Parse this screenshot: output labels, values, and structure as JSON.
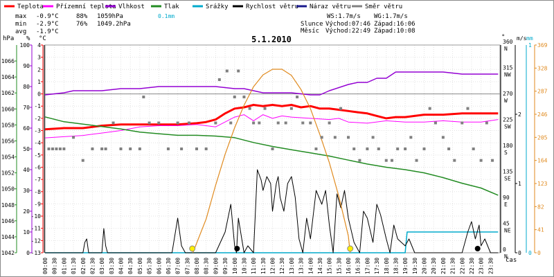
{
  "legend": [
    {
      "label": "Teplota",
      "color": "#ff0000"
    },
    {
      "label": "Přízemní teplota",
      "color": "#ff00ff"
    },
    {
      "label": "Vlhkost",
      "color": "#9400d3"
    },
    {
      "label": "Tlak",
      "color": "#228b22"
    },
    {
      "label": "Srážky",
      "color": "#00aacc"
    },
    {
      "label": "Rychlost větru",
      "color": "#000000"
    },
    {
      "label": "Náraz větru",
      "color": "#1a1a8c"
    },
    {
      "label": "Směr větru",
      "color": "#808080"
    }
  ],
  "stats": {
    "max": {
      "label": "max",
      "temp": "-0.9°C",
      "hum": "88%",
      "press": "1059hPa",
      "rain": "0.1mm"
    },
    "min": {
      "label": "min",
      "temp": "-2.9°C",
      "hum": "76%",
      "press": "1049.2hPa"
    },
    "avg": {
      "label": "avg",
      "temp": "-1.9°C"
    }
  },
  "info": {
    "ws": "WS:1.7m/s",
    "wg": "WG:1.7m/s",
    "sun_label": "Slunce",
    "sunrise": "Východ:07:46",
    "sunset": "Západ:16:06",
    "moon_label": "Měsíc",
    "moonrise": "Východ:22:49",
    "moonset": "Západ:10:08"
  },
  "axis_units": {
    "hpa": "hPa",
    "pct": "%",
    "degc": "°C",
    "deg": "°",
    "ms": "m/s",
    "mm": "mm",
    "time": "čas"
  },
  "chart_data": {
    "type": "line",
    "title": "5.1.2010",
    "x_hours": [
      0,
      0.5,
      1,
      1.5,
      2,
      2.5,
      3,
      3.5,
      4,
      4.5,
      5,
      5.5,
      6,
      6.5,
      7,
      7.5,
      8,
      8.5,
      9,
      9.5,
      10,
      10.5,
      11,
      11.5,
      12,
      12.5,
      13,
      13.5,
      14,
      14.5,
      15,
      15.5,
      16,
      16.5,
      17,
      17.5,
      18,
      18.5,
      19,
      19.5,
      20,
      20.5,
      21,
      21.5,
      22,
      22.5,
      23,
      23.5
    ],
    "x_tick_labels": [
      "00:00",
      "00:30",
      "01:00",
      "01:30",
      "02:00",
      "02:30",
      "03:00",
      "03:30",
      "04:00",
      "04:30",
      "05:00",
      "05:30",
      "06:00",
      "06:30",
      "07:00",
      "07:30",
      "08:00",
      "08:30",
      "09:00",
      "09:30",
      "10:00",
      "10:30",
      "11:00",
      "11:30",
      "12:00",
      "12:30",
      "13:00",
      "13:30",
      "14:00",
      "14:30",
      "15:00",
      "15:30",
      "16:00",
      "16:30",
      "17:00",
      "17:30",
      "18:00",
      "18:30",
      "19:00",
      "19:30",
      "20:00",
      "20:30",
      "21:00",
      "21:30",
      "22:00",
      "22:30",
      "23:00",
      "23:30"
    ],
    "axes": {
      "hpa": {
        "ticks": [
          1042,
          1044,
          1046,
          1048,
          1050,
          1052,
          1054,
          1056,
          1058,
          1060,
          1062,
          1064,
          1066
        ],
        "range": [
          1042,
          1068
        ]
      },
      "pct": {
        "ticks": [
          0,
          10,
          20,
          30,
          40,
          50,
          60,
          70,
          80,
          90,
          100
        ],
        "range": [
          0,
          100
        ]
      },
      "degc": {
        "ticks": [
          -13,
          -12,
          -11,
          -10,
          -9,
          -8,
          -7,
          -6,
          -5,
          -4,
          -3,
          -2,
          -1,
          0,
          1,
          2,
          3,
          4
        ],
        "range": [
          -13,
          4
        ]
      },
      "deg": {
        "ticks": [
          0,
          45,
          90,
          135,
          180,
          225,
          270,
          315,
          360
        ],
        "compass": [
          "N",
          "NE",
          "E",
          "SE",
          "S",
          "SW",
          "W",
          "NW",
          "N"
        ],
        "range": [
          0,
          360
        ]
      },
      "ms": {
        "ticks": [
          0,
          1,
          2
        ],
        "range": [
          0,
          3
        ]
      },
      "mm": {
        "ticks": [
          0,
          1
        ],
        "range": [
          0,
          1
        ]
      },
      "solar": {
        "ticks": [
          0,
          41,
          82,
          123,
          164,
          205,
          246,
          287,
          328,
          369
        ],
        "range": [
          0,
          369
        ]
      }
    },
    "series": [
      {
        "name": "Teplota",
        "unit": "degc",
        "color": "#ff0000",
        "x": [
          0,
          1,
          2,
          3,
          4,
          5,
          6,
          7,
          8,
          8.5,
          9,
          9.5,
          10,
          10.5,
          11,
          11.5,
          12,
          12.5,
          13,
          13.5,
          14,
          14.5,
          15,
          15.5,
          16,
          16.5,
          17,
          17.5,
          18,
          18.5,
          19,
          19.5,
          20,
          21,
          22,
          23,
          23.9
        ],
        "y": [
          -2.9,
          -2.8,
          -2.8,
          -2.6,
          -2.5,
          -2.5,
          -2.5,
          -2.5,
          -2.4,
          -2.3,
          -2.1,
          -1.6,
          -1.2,
          -1.1,
          -0.9,
          -1.0,
          -0.9,
          -1.0,
          -0.9,
          -1.1,
          -1.0,
          -1.2,
          -1.2,
          -1.3,
          -1.4,
          -1.5,
          -1.6,
          -1.8,
          -2.0,
          -1.9,
          -1.9,
          -1.8,
          -1.7,
          -1.7,
          -1.6,
          -1.6,
          -1.6
        ]
      },
      {
        "name": "Přízemní teplota",
        "unit": "degc",
        "color": "#ff00ff",
        "x": [
          0,
          1,
          2,
          3,
          4,
          5,
          6,
          7,
          8,
          9,
          10,
          10.5,
          11,
          11.5,
          12,
          12.5,
          13,
          14,
          15,
          15.5,
          16,
          17,
          18,
          19,
          20,
          21,
          22,
          23,
          23.9
        ],
        "y": [
          -3.6,
          -3.5,
          -3.4,
          -3.2,
          -3.0,
          -2.7,
          -2.6,
          -2.6,
          -2.5,
          -2.7,
          -1.9,
          -1.7,
          -2.2,
          -1.7,
          -2.0,
          -1.8,
          -1.9,
          -2.0,
          -2.1,
          -2.0,
          -2.3,
          -2.4,
          -2.2,
          -2.3,
          -2.3,
          -2.2,
          -2.3,
          -2.3,
          -2.1
        ]
      },
      {
        "name": "Vlhkost",
        "unit": "pct",
        "color": "#9400d3",
        "x": [
          0,
          1,
          1.5,
          2,
          3,
          4,
          5,
          6,
          6.5,
          7,
          8,
          9,
          10,
          10.5,
          11,
          11.5,
          12,
          13,
          14,
          14.5,
          15,
          16,
          16.5,
          17,
          17.5,
          18,
          18.5,
          19,
          19.5,
          20,
          21,
          22,
          23,
          23.9
        ],
        "y": [
          76,
          77,
          78,
          78,
          78,
          79,
          79,
          80,
          80,
          80,
          80,
          80,
          79,
          79,
          78,
          77,
          77,
          77,
          76,
          76,
          78,
          81,
          82,
          82,
          84,
          84,
          87,
          87,
          87,
          87,
          87,
          86,
          86,
          86
        ]
      },
      {
        "name": "Tlak",
        "unit": "hpa",
        "color": "#228b22",
        "x": [
          0,
          1,
          2,
          3,
          4,
          5,
          6,
          7,
          8,
          9,
          10,
          11,
          12,
          13,
          14,
          15,
          16,
          17,
          18,
          19,
          20,
          21,
          22,
          23,
          23.9
        ],
        "y": [
          1059.0,
          1058.4,
          1058.1,
          1057.8,
          1057.5,
          1057.1,
          1056.9,
          1056.7,
          1056.7,
          1056.6,
          1056.4,
          1055.8,
          1055.3,
          1054.9,
          1054.5,
          1054.1,
          1053.6,
          1053.1,
          1052.7,
          1052.4,
          1052.0,
          1051.4,
          1050.7,
          1050.1,
          1049.2
        ]
      },
      {
        "name": "Srážky",
        "unit": "mm",
        "color": "#00aacc",
        "x": [
          0,
          19.0,
          19.1,
          23.9
        ],
        "y": [
          0,
          0,
          0.1,
          0.1
        ]
      },
      {
        "name": "Rychlost větru",
        "unit": "ms",
        "color": "#000000",
        "x": [
          0,
          1,
          2,
          2.1,
          2.2,
          2.3,
          2.5,
          3,
          3.1,
          3.2,
          3.3,
          3.5,
          4,
          5,
          6,
          6.7,
          7.0,
          7.2,
          7.4,
          8,
          9,
          9.5,
          9.8,
          10,
          10.1,
          10.2,
          10.5,
          10.7,
          11,
          11.2,
          11.4,
          11.5,
          11.7,
          11.9,
          12,
          12.2,
          12.3,
          12.4,
          12.6,
          12.8,
          13,
          13.2,
          13.4,
          13.6,
          13.8,
          14,
          14.3,
          14.6,
          14.8,
          15,
          15.2,
          15.4,
          15.6,
          15.8,
          16,
          16.3,
          16.6,
          16.8,
          17,
          17.3,
          17.5,
          17.7,
          18,
          18.2,
          18.4,
          18.6,
          18.8,
          19,
          19.2,
          19.5,
          20,
          21,
          22,
          22.3,
          22.5,
          22.7,
          22.9,
          23,
          23.2,
          23.5,
          23.9
        ],
        "y": [
          0,
          0,
          0,
          0.15,
          0.2,
          0,
          0,
          0,
          0.35,
          0.1,
          0,
          0,
          0,
          0,
          0,
          0,
          0.5,
          0.1,
          0,
          0,
          0,
          0.3,
          0.7,
          0.1,
          0,
          0.5,
          0,
          0.1,
          0,
          1.2,
          1.05,
          0.9,
          1.1,
          1.0,
          0.6,
          1.0,
          1.1,
          0.8,
          0.6,
          1.0,
          1.1,
          0.8,
          0.2,
          0,
          0.5,
          0.2,
          0.9,
          0.7,
          0.9,
          0.4,
          0,
          0.85,
          0.65,
          0.9,
          0.5,
          0.15,
          0,
          0.6,
          0.5,
          0.15,
          0.7,
          0.55,
          0.2,
          0,
          0.4,
          0.2,
          0.15,
          0.1,
          0.2,
          0,
          0,
          0,
          0,
          0.3,
          0.45,
          0.2,
          0.4,
          0.1,
          0.2,
          0,
          0
        ]
      },
      {
        "name": "Solar",
        "unit": "solar",
        "color": "#e08a1e",
        "x": [
          7.8,
          8.5,
          9,
          9.5,
          10,
          10.5,
          11,
          11.5,
          12,
          12.5,
          13,
          13.5,
          14,
          14.5,
          15,
          15.5,
          16,
          16.1
        ],
        "y": [
          0,
          60,
          120,
          175,
          222,
          262,
          295,
          316,
          326,
          326,
          315,
          290,
          256,
          210,
          160,
          100,
          30,
          0
        ]
      },
      {
        "name": "Směr větru",
        "unit": "deg",
        "color": "#808080",
        "points": [
          [
            0.2,
            180
          ],
          [
            0.4,
            180
          ],
          [
            0.6,
            180
          ],
          [
            0.8,
            180
          ],
          [
            1.0,
            180
          ],
          [
            1.5,
            200
          ],
          [
            2.0,
            160
          ],
          [
            2.5,
            180
          ],
          [
            3,
            180
          ],
          [
            3.2,
            180
          ],
          [
            3.6,
            225
          ],
          [
            4,
            180
          ],
          [
            4.5,
            180
          ],
          [
            5,
            180
          ],
          [
            5.2,
            270
          ],
          [
            5.5,
            225
          ],
          [
            6,
            225
          ],
          [
            6.5,
            180
          ],
          [
            7,
            225
          ],
          [
            7.2,
            180
          ],
          [
            7.6,
            225
          ],
          [
            8.0,
            180
          ],
          [
            8.5,
            180
          ],
          [
            9,
            225
          ],
          [
            9.2,
            300
          ],
          [
            9.6,
            315
          ],
          [
            9.8,
            225
          ],
          [
            10,
            270
          ],
          [
            10.2,
            315
          ],
          [
            10.5,
            270
          ],
          [
            10.8,
            250
          ],
          [
            11,
            225
          ],
          [
            11.3,
            225
          ],
          [
            11.6,
            250
          ],
          [
            12,
            180
          ],
          [
            12.3,
            225
          ],
          [
            12.7,
            225
          ],
          [
            13,
            250
          ],
          [
            13.3,
            270
          ],
          [
            13.6,
            225
          ],
          [
            14,
            225
          ],
          [
            14.3,
            180
          ],
          [
            14.6,
            200
          ],
          [
            15,
            225
          ],
          [
            15.3,
            200
          ],
          [
            15.6,
            250
          ],
          [
            16,
            200
          ],
          [
            16.3,
            180
          ],
          [
            16.6,
            160
          ],
          [
            17,
            180
          ],
          [
            17.3,
            200
          ],
          [
            17.6,
            180
          ],
          [
            18,
            160
          ],
          [
            18.3,
            160
          ],
          [
            18.6,
            180
          ],
          [
            19,
            180
          ],
          [
            19.3,
            200
          ],
          [
            19.6,
            160
          ],
          [
            20,
            180
          ],
          [
            20.3,
            250
          ],
          [
            20.6,
            225
          ],
          [
            21,
            200
          ],
          [
            21.3,
            180
          ],
          [
            21.6,
            160
          ],
          [
            22,
            225
          ],
          [
            22.3,
            250
          ],
          [
            22.6,
            180
          ],
          [
            23,
            160
          ],
          [
            23.3,
            225
          ],
          [
            23.6,
            160
          ]
        ]
      }
    ],
    "sun_markers": [
      {
        "x": 7.77,
        "color": "#ffee00"
      },
      {
        "x": 16.1,
        "color": "#ffee00"
      }
    ],
    "moon_markers": [
      {
        "x": 10.13,
        "color": "#000000"
      },
      {
        "x": 22.82,
        "color": "#000000"
      }
    ]
  }
}
